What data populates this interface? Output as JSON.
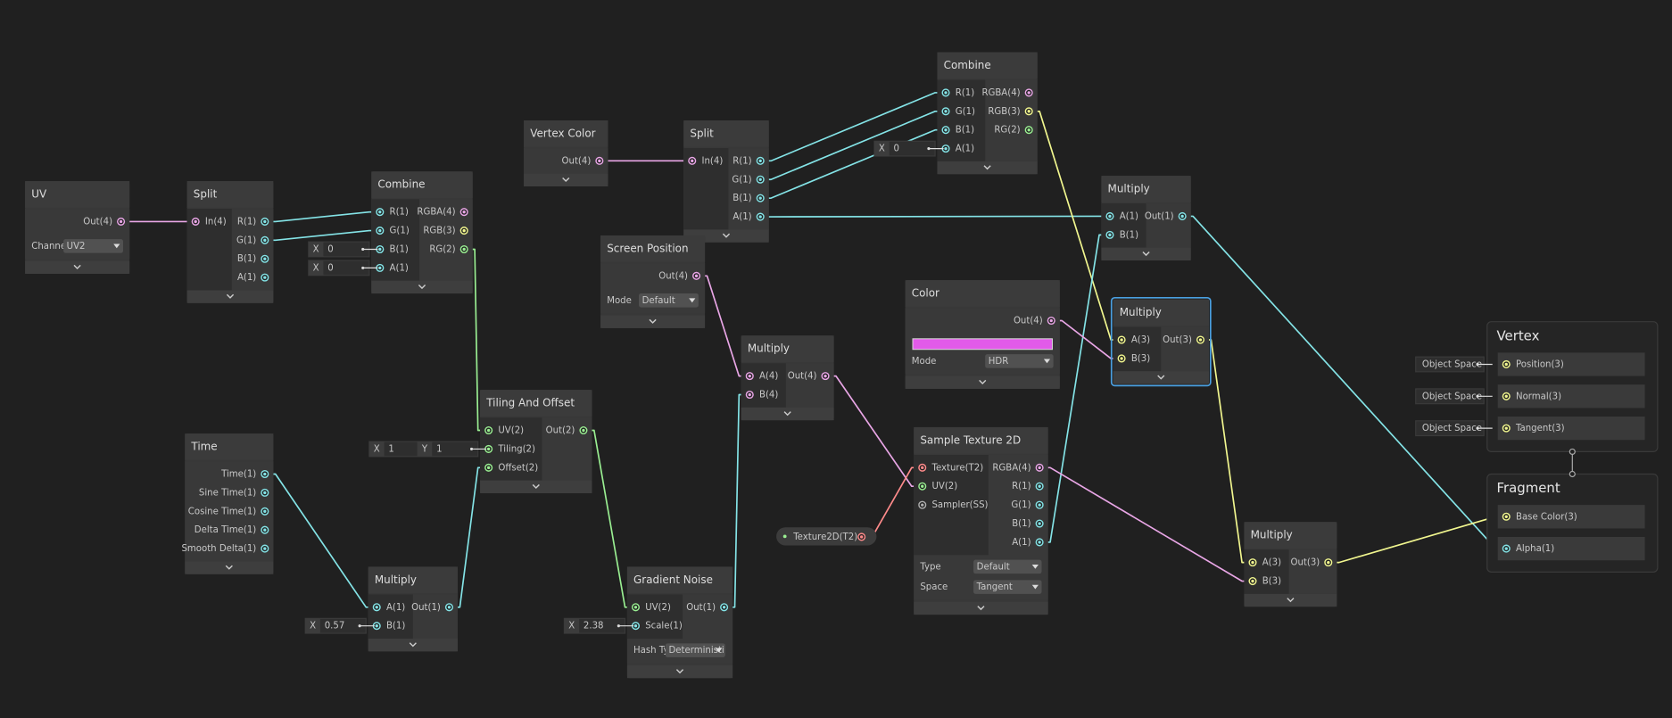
{
  "nodes": [
    {
      "title": "UV",
      "inputs": [],
      "outputs": [
        "Out(4)"
      ],
      "fields": [
        {
          "label": "Channe",
          "value": "UV2"
        }
      ]
    },
    {
      "title": "Split",
      "inputs": [
        {
          "name": "In(4)"
        }
      ],
      "outputs": [
        "R(1)",
        "G(1)",
        "B(1)",
        "A(1)"
      ],
      "fields": []
    },
    {
      "title": "Combine",
      "inputs": [
        {
          "name": "R(1)"
        },
        {
          "name": "G(1)"
        },
        {
          "name": "B(1)",
          "field": [
            "X",
            "0"
          ]
        },
        {
          "name": "A(1)",
          "field": [
            "X",
            "0"
          ]
        }
      ],
      "outputs": [
        "RGBA(4)",
        "RGB(3)",
        "RG(2)"
      ],
      "fields": []
    },
    {
      "title": "Vertex Color",
      "inputs": [],
      "outputs": [
        "Out(4)"
      ],
      "fields": []
    },
    {
      "title": "Split",
      "inputs": [
        {
          "name": "In(4)"
        }
      ],
      "outputs": [
        "R(1)",
        "G(1)",
        "B(1)",
        "A(1)"
      ],
      "fields": []
    },
    {
      "title": "Combine",
      "inputs": [
        {
          "name": "R(1)"
        },
        {
          "name": "G(1)"
        },
        {
          "name": "B(1)"
        },
        {
          "name": "A(1)",
          "field": [
            "X",
            "0"
          ]
        }
      ],
      "outputs": [
        "RGBA(4)",
        "RGB(3)",
        "RG(2)"
      ],
      "fields": []
    },
    {
      "title": "Multiply",
      "inputs": [
        {
          "name": "A(1)"
        },
        {
          "name": "B(1)"
        }
      ],
      "outputs": [
        "Out(1)"
      ],
      "fields": []
    },
    {
      "title": "Screen Position",
      "inputs": [],
      "outputs": [
        "Out(4)"
      ],
      "fields": [
        {
          "label": "Mode",
          "value": "Default"
        }
      ]
    },
    {
      "title": "Multiply",
      "inputs": [
        {
          "name": "A(4)"
        },
        {
          "name": "B(4)"
        }
      ],
      "outputs": [
        "Out(4)"
      ],
      "fields": []
    },
    {
      "title": "Color",
      "inputs": [],
      "outputs": [
        "Out(4)"
      ],
      "swatch": "#e25ae9",
      "fields": [
        {
          "label": "Mode",
          "value": "HDR"
        }
      ]
    },
    {
      "title": "Multiply",
      "inputs": [
        {
          "name": "A(3)"
        },
        {
          "name": "B(3)"
        }
      ],
      "outputs": [
        "Out(3)"
      ],
      "fields": []
    },
    {
      "title": "Tiling And Offset",
      "inputs": [
        {
          "name": "UV(2)"
        },
        {
          "name": "Tiling(2)",
          "field": [
            "X",
            "1",
            "Y",
            "1"
          ]
        },
        {
          "name": "Offset(2)"
        }
      ],
      "outputs": [
        "Out(2)"
      ],
      "fields": []
    },
    {
      "title": "Time",
      "inputs": [],
      "outputs": [
        "Time(1)",
        "Sine Time(1)",
        "Cosine Time(1)",
        "Delta Time(1)",
        "Smooth Delta(1)"
      ],
      "fields": []
    },
    {
      "title": "Multiply",
      "inputs": [
        {
          "name": "A(1)"
        },
        {
          "name": "B(1)",
          "field": [
            "X",
            "0.57"
          ]
        }
      ],
      "outputs": [
        "Out(1)"
      ],
      "fields": []
    },
    {
      "title": "Gradient Noise",
      "inputs": [
        {
          "name": "UV(2)"
        },
        {
          "name": "Scale(1)",
          "field": [
            "X",
            "2.38"
          ]
        }
      ],
      "outputs": [
        "Out(1)"
      ],
      "fields": [
        {
          "label": "Hash Ty",
          "value": "Deterministi"
        }
      ]
    },
    {
      "title": "Sample Texture 2D",
      "inputs": [
        {
          "name": "Texture(T2)"
        },
        {
          "name": "UV(2)"
        },
        {
          "name": "Sampler(SS)"
        }
      ],
      "outputs": [
        "RGBA(4)",
        "R(1)",
        "G(1)",
        "B(1)",
        "A(1)"
      ],
      "fields": [
        {
          "label": "Type",
          "value": "Default"
        },
        {
          "label": "Space",
          "value": "Tangent"
        }
      ]
    },
    {
      "title": "Multiply",
      "inputs": [
        {
          "name": "A(3)"
        },
        {
          "name": "B(3)"
        }
      ],
      "outputs": [
        "Out(3)"
      ],
      "fields": []
    }
  ],
  "masters": [
    {
      "title": "Vertex",
      "inputs": [
        {
          "name": "Position(3)",
          "field": [
            "Object Space"
          ]
        },
        {
          "name": "Normal(3)",
          "field": [
            "Object Space"
          ]
        },
        {
          "name": "Tangent(3)",
          "field": [
            "Object Space"
          ]
        }
      ]
    },
    {
      "title": "Fragment",
      "inputs": [
        {
          "name": "Base Color(3)"
        },
        {
          "name": "Alpha(1)"
        }
      ]
    }
  ],
  "property": {
    "label": "Texture2D(T2)"
  }
}
